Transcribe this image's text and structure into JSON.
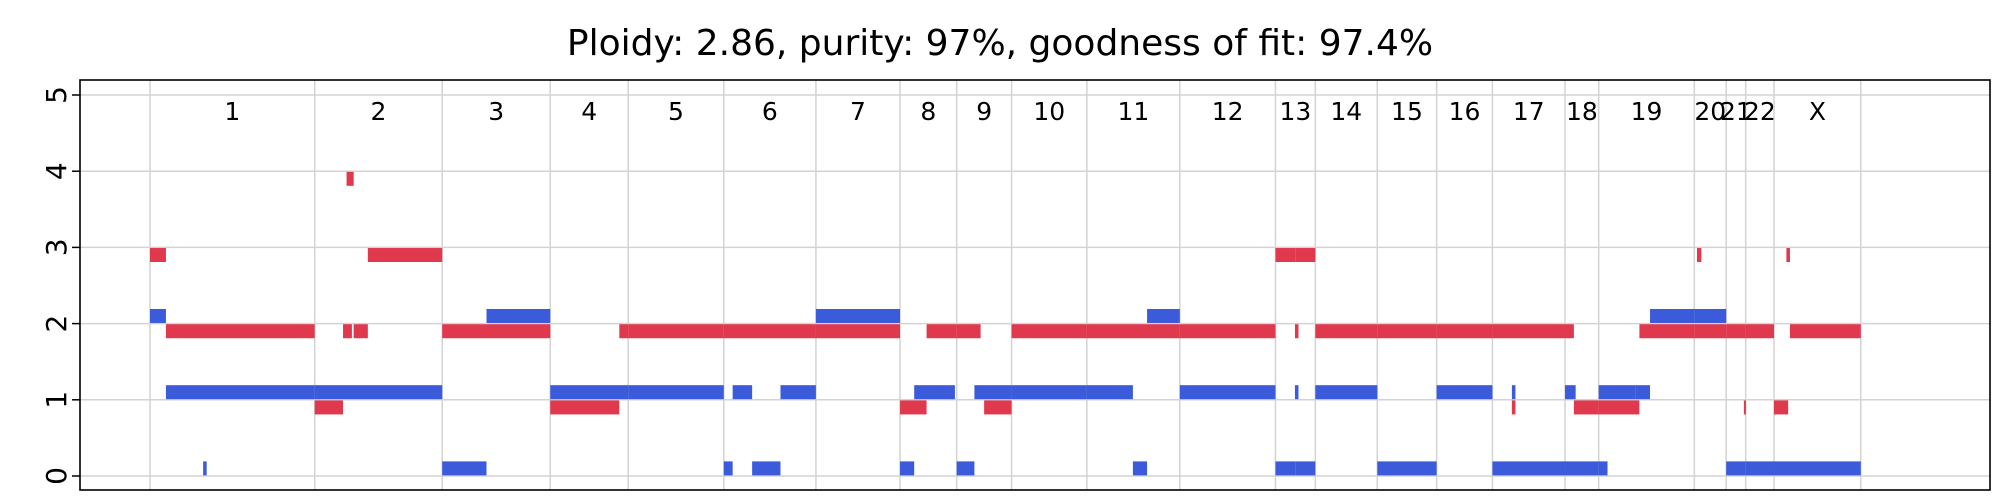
{
  "chart_data": {
    "type": "copy-number-segments",
    "title": "Ploidy: 2.86, purity: 97%, goodness of fit: 97.4%",
    "xlabel": "",
    "ylabel": "",
    "ylim": [
      0,
      5
    ],
    "yticks": [
      "0",
      "1",
      "2",
      "3",
      "4",
      "5"
    ],
    "grid": true,
    "xlim": [
      0,
      1.0
    ],
    "chromosomes": [
      {
        "label": "1",
        "start": 0.0,
        "end": 0.093
      },
      {
        "label": "2",
        "start": 0.093,
        "end": 0.165
      },
      {
        "label": "3",
        "start": 0.165,
        "end": 0.226
      },
      {
        "label": "4",
        "start": 0.226,
        "end": 0.27
      },
      {
        "label": "5",
        "start": 0.27,
        "end": 0.324
      },
      {
        "label": "6",
        "start": 0.324,
        "end": 0.376
      },
      {
        "label": "7",
        "start": 0.376,
        "end": 0.4235
      },
      {
        "label": "8",
        "start": 0.4235,
        "end": 0.4555
      },
      {
        "label": "9",
        "start": 0.4555,
        "end": 0.4865
      },
      {
        "label": "10",
        "start": 0.4865,
        "end": 0.529
      },
      {
        "label": "11",
        "start": 0.529,
        "end": 0.5815
      },
      {
        "label": "12",
        "start": 0.5815,
        "end": 0.6355
      },
      {
        "label": "13",
        "start": 0.6355,
        "end": 0.658
      },
      {
        "label": "14",
        "start": 0.658,
        "end": 0.693
      },
      {
        "label": "15",
        "start": 0.693,
        "end": 0.7265
      },
      {
        "label": "16",
        "start": 0.7265,
        "end": 0.758
      },
      {
        "label": "17",
        "start": 0.758,
        "end": 0.799
      },
      {
        "label": "18",
        "start": 0.799,
        "end": 0.818
      },
      {
        "label": "19",
        "start": 0.818,
        "end": 0.872
      },
      {
        "label": "20",
        "start": 0.872,
        "end": 0.89
      },
      {
        "label": "21",
        "start": 0.89,
        "end": 0.901
      },
      {
        "label": "22",
        "start": 0.901,
        "end": 0.917
      },
      {
        "label": "X",
        "start": 0.917,
        "end": 0.966
      }
    ],
    "series": [
      {
        "color": "#3b5bdb",
        "segments": [
          [
            0.0,
            0.009,
            2.1
          ],
          [
            0.009,
            0.093,
            1.1
          ],
          [
            0.03,
            0.032,
            0.1
          ],
          [
            0.093,
            0.165,
            1.1
          ],
          [
            0.165,
            0.19,
            0.1
          ],
          [
            0.19,
            0.226,
            2.1
          ],
          [
            0.226,
            0.27,
            1.1
          ],
          [
            0.27,
            0.324,
            1.1
          ],
          [
            0.324,
            0.329,
            0.1
          ],
          [
            0.329,
            0.34,
            1.1
          ],
          [
            0.34,
            0.356,
            0.1
          ],
          [
            0.356,
            0.376,
            1.1
          ],
          [
            0.376,
            0.4235,
            2.1
          ],
          [
            0.4235,
            0.4315,
            0.1
          ],
          [
            0.4315,
            0.4545,
            1.1
          ],
          [
            0.4555,
            0.4655,
            0.1
          ],
          [
            0.4655,
            0.4865,
            1.1
          ],
          [
            0.4865,
            0.529,
            1.1
          ],
          [
            0.529,
            0.555,
            1.1
          ],
          [
            0.555,
            0.563,
            0.1
          ],
          [
            0.563,
            0.5815,
            2.1
          ],
          [
            0.5815,
            0.6355,
            1.1
          ],
          [
            0.6355,
            0.647,
            0.1
          ],
          [
            0.647,
            0.658,
            0.1
          ],
          [
            0.6465,
            0.6485,
            1.1
          ],
          [
            0.658,
            0.693,
            1.1
          ],
          [
            0.693,
            0.7265,
            0.1
          ],
          [
            0.7265,
            0.758,
            1.1
          ],
          [
            0.758,
            0.799,
            0.1
          ],
          [
            0.769,
            0.771,
            1.1
          ],
          [
            0.799,
            0.818,
            0.1
          ],
          [
            0.799,
            0.805,
            1.1
          ],
          [
            0.818,
            0.823,
            0.1
          ],
          [
            0.818,
            0.839,
            1.1
          ],
          [
            0.839,
            0.847,
            1.1
          ],
          [
            0.847,
            0.872,
            2.1
          ],
          [
            0.872,
            0.89,
            2.1
          ],
          [
            0.89,
            0.901,
            0.1
          ],
          [
            0.901,
            0.917,
            0.1
          ],
          [
            0.917,
            0.966,
            0.1
          ]
        ]
      },
      {
        "color": "#e0384c",
        "segments": [
          [
            0.0,
            0.009,
            2.9
          ],
          [
            0.009,
            0.093,
            1.9
          ],
          [
            0.093,
            0.109,
            0.9
          ],
          [
            0.111,
            0.115,
            3.9
          ],
          [
            0.109,
            0.114,
            1.9
          ],
          [
            0.115,
            0.123,
            1.9
          ],
          [
            0.123,
            0.165,
            2.9
          ],
          [
            0.165,
            0.226,
            1.9
          ],
          [
            0.226,
            0.265,
            0.9
          ],
          [
            0.265,
            0.27,
            1.9
          ],
          [
            0.27,
            0.324,
            1.9
          ],
          [
            0.324,
            0.376,
            1.9
          ],
          [
            0.376,
            0.4235,
            1.9
          ],
          [
            0.4235,
            0.4385,
            0.9
          ],
          [
            0.4385,
            0.4555,
            1.9
          ],
          [
            0.4555,
            0.469,
            1.9
          ],
          [
            0.471,
            0.4865,
            0.9
          ],
          [
            0.4865,
            0.529,
            1.9
          ],
          [
            0.529,
            0.5815,
            1.9
          ],
          [
            0.5815,
            0.6355,
            1.9
          ],
          [
            0.6355,
            0.647,
            2.9
          ],
          [
            0.647,
            0.658,
            2.9
          ],
          [
            0.6465,
            0.6485,
            1.9
          ],
          [
            0.658,
            0.693,
            1.9
          ],
          [
            0.693,
            0.7265,
            1.9
          ],
          [
            0.7265,
            0.758,
            1.9
          ],
          [
            0.758,
            0.799,
            1.9
          ],
          [
            0.769,
            0.771,
            0.9
          ],
          [
            0.799,
            0.804,
            1.9
          ],
          [
            0.804,
            0.818,
            0.9
          ],
          [
            0.818,
            0.841,
            0.9
          ],
          [
            0.841,
            0.872,
            1.9
          ],
          [
            0.872,
            0.89,
            1.9
          ],
          [
            0.8735,
            0.876,
            2.9
          ],
          [
            0.89,
            0.901,
            1.9
          ],
          [
            0.901,
            0.917,
            1.9
          ],
          [
            0.9,
            0.901,
            0.9
          ],
          [
            0.917,
            0.925,
            0.9
          ],
          [
            0.924,
            0.926,
            2.9
          ],
          [
            0.926,
            0.966,
            1.9
          ]
        ]
      }
    ]
  }
}
